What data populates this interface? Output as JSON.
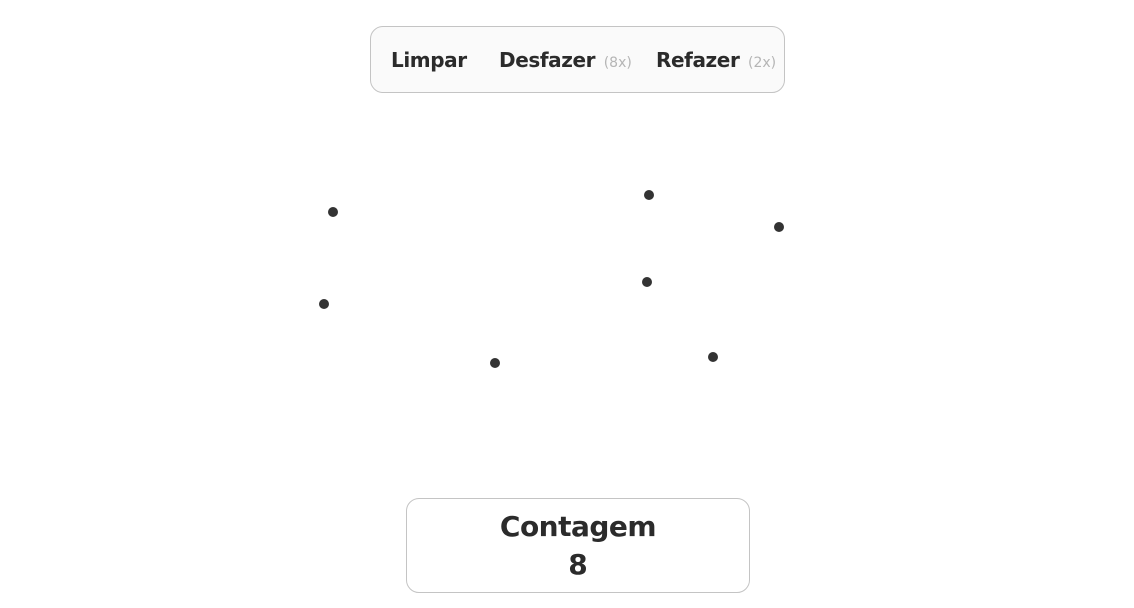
{
  "toolbar": {
    "clear_label": "Limpar",
    "undo_label": "Desfazer",
    "undo_count": "(8x)",
    "redo_label": "Refazer",
    "redo_count": "(2x)"
  },
  "counter": {
    "label": "Contagem",
    "value": "8"
  },
  "colors": {
    "dot": "#333333",
    "text": "#2b2b2b",
    "muted": "#b5b5b5",
    "border": "#c4c4c4"
  }
}
